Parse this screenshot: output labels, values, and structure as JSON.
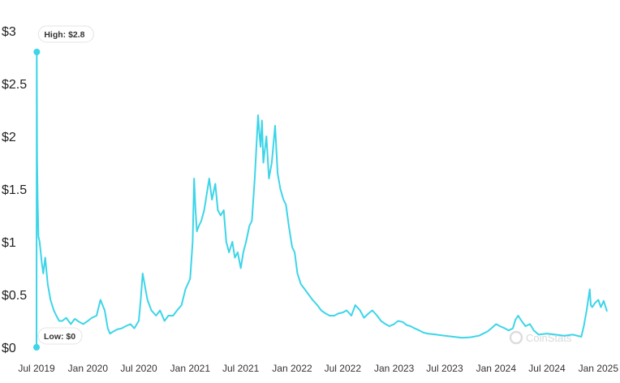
{
  "chart_data": {
    "type": "line",
    "title": "",
    "xlabel": "",
    "ylabel": "",
    "ylim": [
      0,
      3
    ],
    "y_ticks": [
      "$0",
      "$0.5",
      "$1",
      "$1.5",
      "$2",
      "$2.5",
      "$3"
    ],
    "y_tick_values": [
      0,
      0.5,
      1,
      1.5,
      2,
      2.5,
      3
    ],
    "x_ticks": [
      "Jul 2019",
      "Jan 2020",
      "Jul 2020",
      "Jan 2021",
      "Jul 2021",
      "Jan 2022",
      "Jul 2022",
      "Jan 2023",
      "Jul 2023",
      "Jan 2024",
      "Jul 2024",
      "Jan 2025"
    ],
    "x_tick_dates": [
      "2019-07-01",
      "2020-01-01",
      "2020-07-01",
      "2021-01-01",
      "2021-07-01",
      "2022-01-01",
      "2022-07-01",
      "2023-01-01",
      "2023-07-01",
      "2024-01-01",
      "2024-07-01",
      "2025-01-01"
    ],
    "xlim": [
      "2019-07-01",
      "2025-02-01"
    ],
    "grid": false,
    "line_color": "#3dd5e8",
    "series": [
      {
        "x": [
          "2019-07-01",
          "2019-07-02",
          "2019-07-03",
          "2019-07-05",
          "2019-07-08",
          "2019-07-12",
          "2019-07-16",
          "2019-07-20",
          "2019-07-25",
          "2019-08-01",
          "2019-08-10",
          "2019-08-20",
          "2019-09-01",
          "2019-09-10",
          "2019-09-20",
          "2019-10-01",
          "2019-10-15",
          "2019-11-01",
          "2019-11-15",
          "2019-12-01",
          "2019-12-15",
          "2020-01-01",
          "2020-01-15",
          "2020-02-01",
          "2020-02-15",
          "2020-03-01",
          "2020-03-12",
          "2020-03-20",
          "2020-04-01",
          "2020-04-15",
          "2020-05-01",
          "2020-05-15",
          "2020-06-01",
          "2020-06-15",
          "2020-07-01",
          "2020-07-08",
          "2020-07-15",
          "2020-07-25",
          "2020-08-01",
          "2020-08-15",
          "2020-09-01",
          "2020-09-15",
          "2020-10-01",
          "2020-10-15",
          "2020-11-01",
          "2020-11-15",
          "2020-12-01",
          "2020-12-15",
          "2021-01-01",
          "2021-01-10",
          "2021-01-15",
          "2021-01-20",
          "2021-01-25",
          "2021-02-01",
          "2021-02-10",
          "2021-02-20",
          "2021-03-01",
          "2021-03-10",
          "2021-03-20",
          "2021-04-01",
          "2021-04-10",
          "2021-04-20",
          "2021-05-01",
          "2021-05-10",
          "2021-05-20",
          "2021-06-01",
          "2021-06-10",
          "2021-06-20",
          "2021-07-01",
          "2021-07-10",
          "2021-07-20",
          "2021-08-01",
          "2021-08-10",
          "2021-08-20",
          "2021-09-01",
          "2021-09-05",
          "2021-09-10",
          "2021-09-15",
          "2021-09-20",
          "2021-10-01",
          "2021-10-10",
          "2021-10-20",
          "2021-11-01",
          "2021-11-10",
          "2021-11-20",
          "2021-12-01",
          "2021-12-10",
          "2021-12-20",
          "2022-01-01",
          "2022-01-10",
          "2022-01-20",
          "2022-02-01",
          "2022-02-15",
          "2022-03-01",
          "2022-03-15",
          "2022-04-01",
          "2022-04-15",
          "2022-05-01",
          "2022-05-15",
          "2022-06-01",
          "2022-06-15",
          "2022-07-01",
          "2022-07-15",
          "2022-08-01",
          "2022-08-15",
          "2022-09-01",
          "2022-09-15",
          "2022-10-01",
          "2022-10-15",
          "2022-11-01",
          "2022-11-15",
          "2022-12-01",
          "2022-12-15",
          "2023-01-01",
          "2023-01-15",
          "2023-02-01",
          "2023-02-15",
          "2023-03-01",
          "2023-03-15",
          "2023-04-01",
          "2023-04-15",
          "2023-05-01",
          "2023-06-01",
          "2023-07-01",
          "2023-08-01",
          "2023-09-01",
          "2023-10-01",
          "2023-11-01",
          "2023-12-01",
          "2023-12-15",
          "2024-01-01",
          "2024-01-15",
          "2024-02-01",
          "2024-02-15",
          "2024-03-01",
          "2024-03-10",
          "2024-03-20",
          "2024-04-01",
          "2024-04-15",
          "2024-05-01",
          "2024-05-15",
          "2024-06-01",
          "2024-07-01",
          "2024-08-01",
          "2024-09-01",
          "2024-10-01",
          "2024-11-01",
          "2024-11-10",
          "2024-11-20",
          "2024-12-01",
          "2024-12-05",
          "2024-12-10",
          "2024-12-20",
          "2025-01-01",
          "2025-01-10",
          "2025-01-20",
          "2025-02-01"
        ],
        "y": [
          0.0,
          2.8,
          1.8,
          1.4,
          1.05,
          1.0,
          0.9,
          0.8,
          0.7,
          0.85,
          0.6,
          0.45,
          0.35,
          0.3,
          0.25,
          0.25,
          0.28,
          0.22,
          0.27,
          0.24,
          0.22,
          0.25,
          0.28,
          0.3,
          0.45,
          0.35,
          0.18,
          0.13,
          0.15,
          0.17,
          0.18,
          0.2,
          0.22,
          0.18,
          0.25,
          0.45,
          0.7,
          0.55,
          0.45,
          0.35,
          0.3,
          0.35,
          0.25,
          0.3,
          0.3,
          0.35,
          0.4,
          0.55,
          0.65,
          1.0,
          1.6,
          1.3,
          1.1,
          1.15,
          1.2,
          1.3,
          1.45,
          1.6,
          1.4,
          1.55,
          1.3,
          1.25,
          1.3,
          1.0,
          0.9,
          1.0,
          0.85,
          0.9,
          0.75,
          0.9,
          1.0,
          1.15,
          1.2,
          1.6,
          2.2,
          2.05,
          1.9,
          2.15,
          1.75,
          2.0,
          1.6,
          1.75,
          2.1,
          1.65,
          1.5,
          1.4,
          1.35,
          1.15,
          0.95,
          0.9,
          0.7,
          0.6,
          0.55,
          0.5,
          0.45,
          0.4,
          0.35,
          0.32,
          0.3,
          0.3,
          0.32,
          0.33,
          0.35,
          0.3,
          0.4,
          0.35,
          0.28,
          0.32,
          0.35,
          0.3,
          0.25,
          0.22,
          0.2,
          0.22,
          0.25,
          0.24,
          0.21,
          0.2,
          0.18,
          0.16,
          0.14,
          0.13,
          0.12,
          0.11,
          0.1,
          0.09,
          0.095,
          0.11,
          0.15,
          0.18,
          0.22,
          0.2,
          0.18,
          0.16,
          0.18,
          0.26,
          0.3,
          0.25,
          0.2,
          0.22,
          0.16,
          0.12,
          0.13,
          0.12,
          0.11,
          0.12,
          0.1,
          0.2,
          0.35,
          0.55,
          0.4,
          0.38,
          0.42,
          0.45,
          0.38,
          0.44,
          0.34
        ]
      }
    ],
    "annotations": {
      "high_label": "High: $2.8",
      "high_value": 2.8,
      "high_date": "2019-07-02",
      "low_label": "Low: $0",
      "low_value": 0,
      "low_date": "2019-07-01"
    },
    "watermark": "CoinStats"
  }
}
